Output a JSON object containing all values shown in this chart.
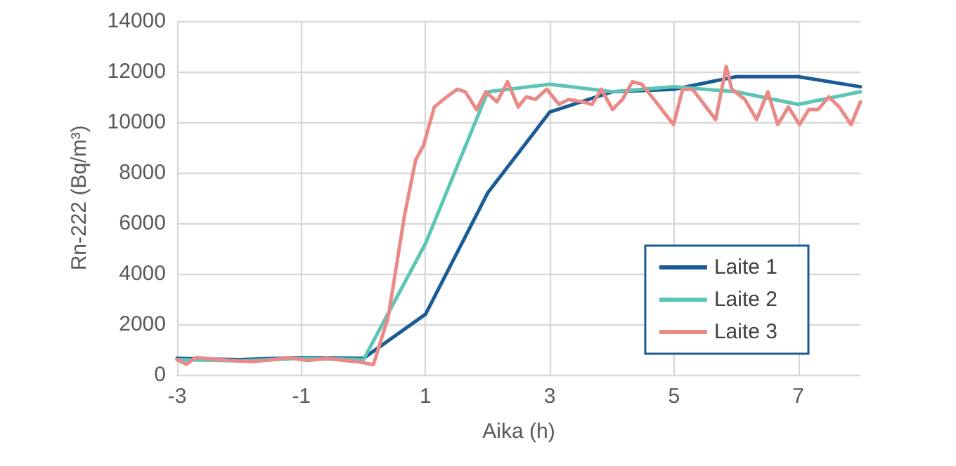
{
  "chart_data": {
    "type": "line",
    "xlabel": "Aika (h)",
    "ylabel": "Rn-222 (Bq/m³)",
    "xlim": [
      -3,
      8
    ],
    "xticks": [
      -3,
      -1,
      1,
      3,
      5,
      7
    ],
    "ylim": [
      0,
      14000
    ],
    "yticks": [
      0,
      2000,
      4000,
      6000,
      8000,
      10000,
      12000,
      14000
    ],
    "grid": true,
    "legend": "bottom right",
    "marker": "none",
    "line_style": "solid",
    "series": [
      {
        "name": "Laite 1",
        "color": "#1b5c96",
        "x": [
          -3,
          -2,
          -1,
          0,
          1,
          2,
          3,
          4,
          5,
          6,
          7,
          8
        ],
        "values": [
          650,
          600,
          680,
          650,
          2400,
          7200,
          10400,
          11200,
          11300,
          11800,
          11800,
          11400
        ]
      },
      {
        "name": "Laite 2",
        "color": "#5cc5b5",
        "x": [
          -3,
          -2,
          -1,
          0,
          1,
          2,
          3,
          4,
          5,
          6,
          7,
          8
        ],
        "values": [
          600,
          550,
          650,
          600,
          5200,
          11200,
          11500,
          11200,
          11400,
          11200,
          10700,
          11200
        ]
      },
      {
        "name": "Laite 3",
        "color": "#ea8a87",
        "x": [
          -3,
          -2.85,
          -2.7,
          -2.4,
          -2.1,
          -1.8,
          -1.5,
          -1.2,
          -0.9,
          -0.6,
          -0.3,
          -0.1,
          0.16,
          0.4,
          0.66,
          0.84,
          0.97,
          1.14,
          1.34,
          1.51,
          1.64,
          1.82,
          1.97,
          2.15,
          2.32,
          2.49,
          2.62,
          2.77,
          2.95,
          3.15,
          3.3,
          3.53,
          3.68,
          3.83,
          4.01,
          4.17,
          4.33,
          4.48,
          4.74,
          4.99,
          5.14,
          5.3,
          5.67,
          5.84,
          5.93,
          6.14,
          6.33,
          6.51,
          6.67,
          6.84,
          7.02,
          7.17,
          7.32,
          7.49,
          7.66,
          7.85,
          8
        ],
        "values": [
          600,
          420,
          680,
          620,
          560,
          520,
          580,
          680,
          560,
          650,
          560,
          520,
          400,
          2300,
          6300,
          8500,
          9100,
          10600,
          11000,
          11300,
          11200,
          10500,
          11200,
          10800,
          11600,
          10600,
          11000,
          10900,
          11300,
          10700,
          10900,
          10800,
          10700,
          11300,
          10500,
          10900,
          11600,
          11500,
          10700,
          9900,
          11300,
          11300,
          10100,
          12200,
          11300,
          10900,
          10100,
          11200,
          9900,
          10600,
          9900,
          10500,
          10500,
          11000,
          10600,
          9900,
          10800
        ]
      }
    ]
  }
}
